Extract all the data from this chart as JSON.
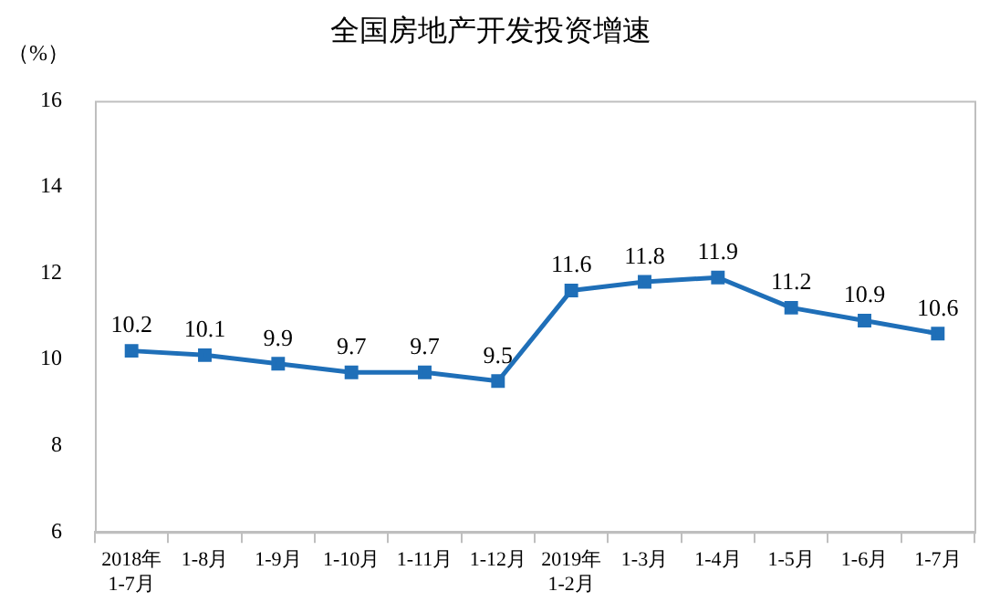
{
  "chart_data": {
    "type": "line",
    "title": "全国房地产开发投资增速",
    "ylabel": "（%）",
    "categories": [
      "2018年\n1-7月",
      "1-8月",
      "1-9月",
      "1-10月",
      "1-11月",
      "1-12月",
      "2019年\n1-2月",
      "1-3月",
      "1-4月",
      "1-5月",
      "1-6月",
      "1-7月"
    ],
    "series": [
      {
        "color": "#1f6fb8",
        "values": [
          10.2,
          10.1,
          9.9,
          9.7,
          9.7,
          9.5,
          11.6,
          11.8,
          11.9,
          11.2,
          10.9,
          10.6
        ]
      }
    ],
    "ylim": [
      6,
      16
    ],
    "yticks": [
      6,
      8,
      10,
      12,
      14,
      16
    ],
    "grid": false,
    "legend": false,
    "marker": "square",
    "line_style": "solid",
    "data_labels": true
  }
}
